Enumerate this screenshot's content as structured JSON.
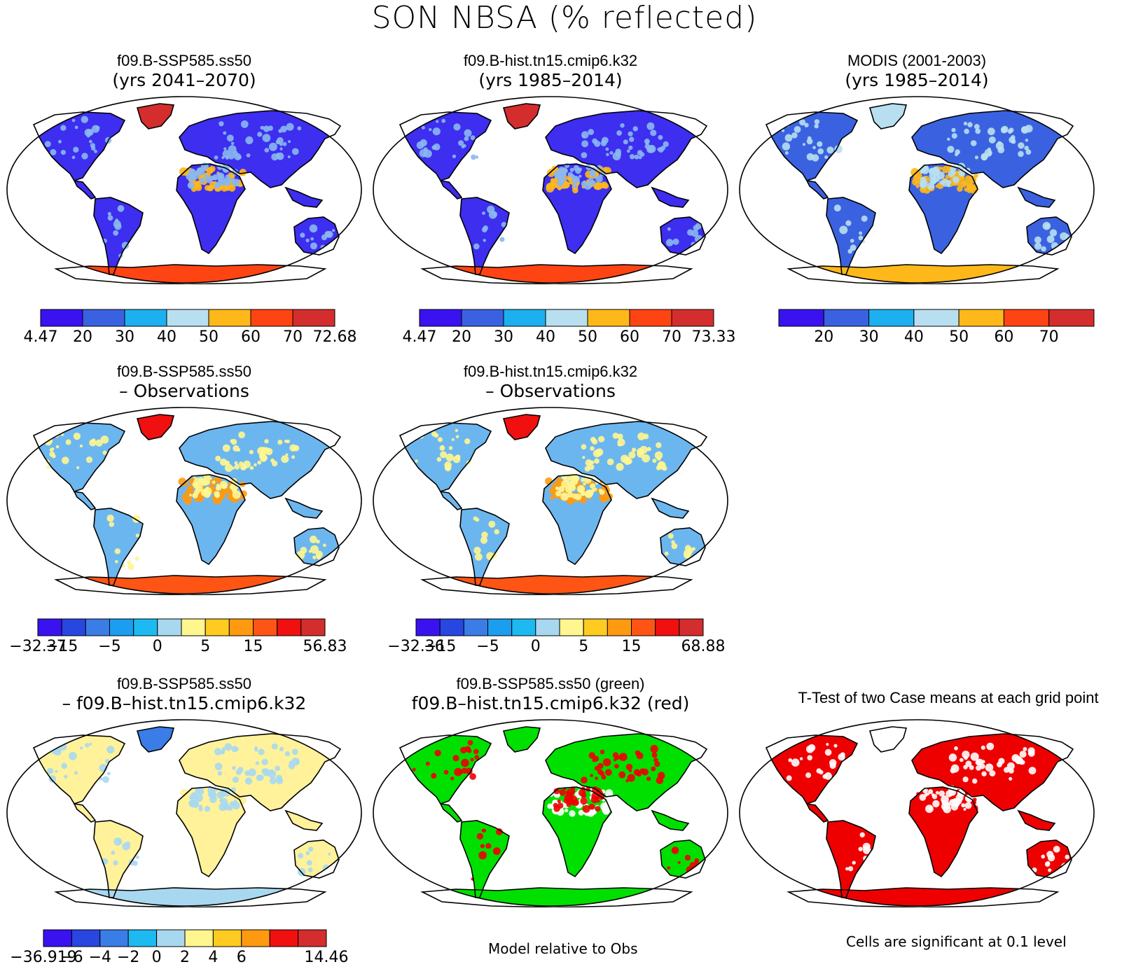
{
  "figure_title": "SON NBSA (% reflected)",
  "colors": {
    "abs": [
      "#3a12f0",
      "#3a62e0",
      "#1cb0f0",
      "#b8dff0",
      "#ffb81a",
      "#ff4414",
      "#d42d2d"
    ],
    "diff10": [
      "#3a12f0",
      "#2846e0",
      "#3b7de6",
      "#1b9ef0",
      "#1cbaf0",
      "#a8d8f0",
      "#fff690",
      "#ffcb20",
      "#ff9a10",
      "#ff5514",
      "#f01010",
      "#d42d2d"
    ],
    "diff10b": [
      "#3a12f0",
      "#2846e0",
      "#3b7de6",
      "#1b9ef0",
      "#1cbaf0",
      "#a8d8f0",
      "#fff690",
      "#ffcb20",
      "#ff9a10",
      "#ff5514",
      "#f01010",
      "#d42d2d"
    ],
    "diff5": [
      "#3a12f0",
      "#2846e0",
      "#3b7de6",
      "#1cbaf0",
      "#a8d8f0",
      "#fff690",
      "#ffcb20",
      "#ff9a10",
      "#f01010",
      "#d42d2d"
    ],
    "ocean": "#ffffff",
    "green": "#00e000",
    "red": "#ee0000"
  },
  "panels": [
    {
      "id": "p1",
      "line1": "f09.B-SSP585.ss50",
      "line2": "(yrs 2041–2070)",
      "fill": "#3d2ef0",
      "desert": "#8ab8f0",
      "arid": "#ffb81a",
      "ice": "#ff4414",
      "greenland": "#d42d2d"
    },
    {
      "id": "p2",
      "line1": "f09.B-hist.tn15.cmip6.k32",
      "line2": "(yrs 1985–2014)",
      "fill": "#3d2ef0",
      "desert": "#8ab8f0",
      "arid": "#ffb81a",
      "ice": "#ff4414",
      "greenland": "#d42d2d"
    },
    {
      "id": "p3",
      "line1": "MODIS (2001-2003)",
      "line2": "(yrs 1985–2014)",
      "fill": "#3a62e0",
      "desert": "#b8dff0",
      "arid": "#ffb81a",
      "ice": "#ffb81a",
      "greenland": "#b8dff0"
    },
    {
      "id": "p4",
      "line1": "f09.B-SSP585.ss50",
      "line2": "– Observations",
      "fill": "#6cb6f0",
      "desert": "#fff690",
      "arid": "#ff9a10",
      "ice": "#ff5514",
      "greenland": "#f01010"
    },
    {
      "id": "p5",
      "line1": "f09.B-hist.tn15.cmip6.k32",
      "line2": "– Observations",
      "fill": "#6cb6f0",
      "desert": "#fff690",
      "arid": "#ff9a10",
      "ice": "#ff5514",
      "greenland": "#f01010"
    },
    {
      "id": "p6",
      "line1": "f09.B-SSP585.ss50",
      "line2": "– f09.B–hist.tn15.cmip6.k32",
      "fill": "#fff29a",
      "desert": "#a8d8f0",
      "arid": "#fff29a",
      "ice": "#a8d8f0",
      "greenland": "#3b7de6"
    },
    {
      "id": "p7",
      "line1": "f09.B-SSP585.ss50 (green)",
      "line2": "f09.B–hist.tn15.cmip6.k32 (red)",
      "fill": "#00e000",
      "desert": "#ee0000",
      "arid": "#ffffff",
      "ice": "#00e000",
      "greenland": "#00e000"
    },
    {
      "id": "p8",
      "line1": "T-Test of two Case means at each grid point",
      "line2": "",
      "fill": "#ee0000",
      "desert": "#ffffff",
      "arid": "#ee0000",
      "ice": "#ee0000",
      "greenland": "#ffffff"
    }
  ],
  "colorbars": [
    {
      "id": "cb1",
      "palette": "abs",
      "labels": [
        "4.47",
        "20",
        "30",
        "40",
        "50",
        "60",
        "70",
        "72.68"
      ]
    },
    {
      "id": "cb2",
      "palette": "abs",
      "labels": [
        "4.47",
        "20",
        "30",
        "40",
        "50",
        "60",
        "70",
        "73.33"
      ]
    },
    {
      "id": "cb3",
      "palette": "abs",
      "labels": [
        "",
        "20",
        "30",
        "40",
        "50",
        "60",
        "70",
        ""
      ]
    },
    {
      "id": "cb4",
      "palette": "diff10",
      "labels": [
        "−32.37",
        "−15",
        "",
        "−5",
        "",
        "0",
        "",
        "5",
        "",
        "15",
        "",
        "",
        "56.83"
      ]
    },
    {
      "id": "cb5",
      "palette": "diff10b",
      "labels": [
        "−32.36",
        "−15",
        "",
        "−5",
        "",
        "0",
        "",
        "5",
        "",
        "15",
        "",
        "",
        "68.88"
      ]
    },
    {
      "id": "cb6",
      "palette": "diff5",
      "labels": [
        "−36.919",
        "−6",
        "−4",
        "−2",
        "0",
        "2",
        "4",
        "6",
        "",
        "",
        "14.46"
      ]
    }
  ],
  "footnotes": {
    "model_relative": "Model relative to Obs",
    "significance": "Cells are significant at 0.1 level"
  }
}
